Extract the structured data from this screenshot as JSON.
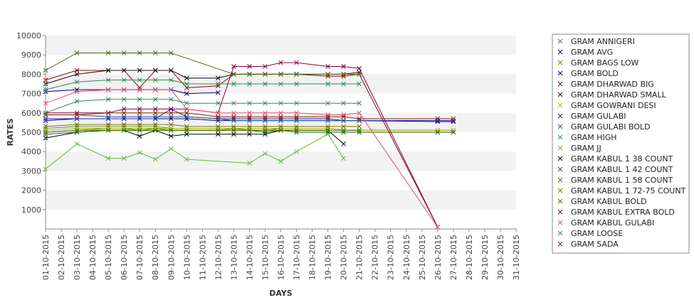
{
  "chart_data": {
    "type": "line",
    "xlabel": "DAYS",
    "ylabel": "RATES",
    "ylim": [
      0,
      10000
    ],
    "yticks": [
      1000,
      2000,
      3000,
      4000,
      5000,
      6000,
      7000,
      8000,
      9000,
      10000
    ],
    "grid": "alternating horizontal bands",
    "legend_position": "right",
    "categories": [
      "01-10-2015",
      "02-10-2015",
      "03-10-2015",
      "04-10-2015",
      "05-10-2015",
      "06-10-2015",
      "07-10-2015",
      "08-10-2015",
      "09-10-2015",
      "10-10-2015",
      "11-10-2015",
      "12-10-2015",
      "13-10-2015",
      "14-10-2015",
      "15-10-2015",
      "16-10-2015",
      "17-10-2015",
      "18-10-2015",
      "19-10-2015",
      "20-10-2015",
      "21-10-2015",
      "22-10-2015",
      "23-10-2015",
      "24-10-2015",
      "25-10-2015",
      "26-10-2015",
      "27-10-2015",
      "28-10-2015",
      "29-10-2015",
      "30-10-2015",
      "31-10-2015"
    ],
    "series": [
      {
        "name": "GRAM ANNIGERI",
        "color": "#2e8b57",
        "values": [
          5000,
          null,
          5100,
          null,
          5200,
          5200,
          5100,
          5200,
          5100,
          5100,
          null,
          5100,
          5200,
          5100,
          5100,
          5200,
          5200,
          null,
          5200,
          5100,
          null,
          null,
          null,
          null,
          null,
          null,
          null,
          null,
          null,
          null,
          null
        ]
      },
      {
        "name": "GRAM AVG",
        "color": "#000080",
        "values": [
          5600,
          null,
          5700,
          null,
          5700,
          5700,
          5700,
          5700,
          5700,
          5700,
          null,
          5600,
          5600,
          5600,
          5600,
          5600,
          5600,
          null,
          5600,
          5600,
          5600,
          null,
          null,
          null,
          null,
          5550,
          5550,
          null,
          null,
          null,
          null
        ]
      },
      {
        "name": "GRAM BAGS LOW",
        "color": "#6b8e23",
        "values": [
          5200,
          null,
          5300,
          null,
          5300,
          5300,
          5300,
          5300,
          5200,
          5200,
          null,
          5200,
          5200,
          5200,
          5200,
          5200,
          5200,
          null,
          5200,
          5100,
          5100,
          null,
          null,
          null,
          null,
          5100,
          5100,
          null,
          null,
          null,
          null
        ]
      },
      {
        "name": "GRAM BOLD",
        "color": "#00008b",
        "values": [
          7100,
          null,
          7200,
          null,
          7200,
          7200,
          7200,
          7200,
          7200,
          7000,
          null,
          7050,
          null,
          null,
          null,
          null,
          null,
          null,
          null,
          null,
          null,
          null,
          null,
          null,
          null,
          null,
          null,
          null,
          null,
          null,
          null
        ]
      },
      {
        "name": "GRAM DHARWAD BIG",
        "color": "#8b0000",
        "values": [
          7700,
          null,
          8200,
          null,
          8200,
          8200,
          7300,
          8200,
          8200,
          7300,
          null,
          7400,
          8000,
          8000,
          8000,
          8000,
          8000,
          null,
          7900,
          7900,
          8000,
          null,
          null,
          null,
          null,
          100,
          null,
          null,
          null,
          null,
          null
        ]
      },
      {
        "name": "GRAM DHARWAD SMALL",
        "color": "#111111",
        "values": [
          7500,
          null,
          8000,
          null,
          8200,
          8200,
          8200,
          8200,
          8200,
          7800,
          null,
          7800,
          8000,
          8000,
          8000,
          8000,
          8000,
          null,
          8000,
          8000,
          8100,
          null,
          null,
          null,
          null,
          null,
          null,
          null,
          null,
          null,
          null
        ]
      },
      {
        "name": "GRAM GOWRANI DESI",
        "color": "#c8b400",
        "values": [
          5100,
          null,
          5200,
          null,
          5200,
          5200,
          5200,
          5200,
          5200,
          5200,
          null,
          5200,
          5200,
          5200,
          5200,
          5200,
          5200,
          null,
          5200,
          5100,
          5100,
          null,
          null,
          null,
          null,
          5100,
          5100,
          null,
          null,
          null,
          null
        ]
      },
      {
        "name": "GRAM GULABI",
        "color": "#2020c0",
        "values": [
          5700,
          null,
          5700,
          null,
          5700,
          5700,
          5700,
          5700,
          6200,
          5800,
          null,
          5700,
          5700,
          5700,
          5700,
          5700,
          5700,
          null,
          5700,
          5600,
          5600,
          null,
          null,
          null,
          null,
          5600,
          5600,
          null,
          null,
          null,
          null
        ]
      },
      {
        "name": "GRAM GULABI BOLD",
        "color": "#1f5f8f",
        "values": [
          5900,
          null,
          5900,
          null,
          5800,
          5800,
          5800,
          5800,
          5800,
          5800,
          null,
          5700,
          5600,
          5600,
          5600,
          5600,
          5600,
          null,
          5600,
          5600,
          5600,
          null,
          null,
          null,
          null,
          null,
          null,
          null,
          null,
          null,
          null
        ]
      },
      {
        "name": "GRAM HIGH",
        "color": "#2e8b57",
        "values": [
          7200,
          null,
          7600,
          null,
          7700,
          7700,
          7700,
          7700,
          7700,
          7500,
          null,
          7500,
          7500,
          7500,
          7500,
          7500,
          7500,
          null,
          7500,
          7500,
          7500,
          null,
          null,
          null,
          null,
          null,
          null,
          null,
          null,
          null,
          null
        ]
      },
      {
        "name": "GRAM JJ",
        "color": "#66bb33",
        "values": [
          3100,
          null,
          4400,
          null,
          3650,
          3650,
          3950,
          3600,
          4150,
          3600,
          null,
          null,
          null,
          3400,
          3900,
          3500,
          4000,
          null,
          4900,
          3650,
          null,
          null,
          null,
          null,
          null,
          null,
          null,
          null,
          null,
          null,
          null
        ]
      },
      {
        "name": "GRAM KABUL 1 38 COUNT",
        "color": "#000000",
        "values": [
          4700,
          null,
          5000,
          null,
          5100,
          5100,
          4800,
          5100,
          4800,
          4900,
          null,
          4900,
          4900,
          4900,
          4900,
          5100,
          5100,
          null,
          5100,
          4400,
          null,
          null,
          null,
          null,
          null,
          null,
          null,
          null,
          null,
          null,
          null
        ]
      },
      {
        "name": "GRAM KABUL 1 42 COUNT",
        "color": "#1e5e2e",
        "values": [
          4900,
          null,
          5000,
          null,
          5100,
          5100,
          5100,
          5100,
          5100,
          5100,
          null,
          5100,
          5100,
          5100,
          5000,
          5100,
          5000,
          null,
          5000,
          5000,
          5000,
          null,
          null,
          null,
          null,
          5000,
          5000,
          null,
          null,
          null,
          null
        ]
      },
      {
        "name": "GRAM KABUL 1 58 COUNT",
        "color": "#3a7d0a",
        "values": [
          5000,
          null,
          5100,
          null,
          5100,
          5100,
          5100,
          5100,
          5100,
          5100,
          null,
          5100,
          5100,
          5100,
          5100,
          5100,
          5100,
          null,
          5100,
          5100,
          5100,
          null,
          null,
          null,
          null,
          null,
          null,
          null,
          null,
          null,
          null
        ]
      },
      {
        "name": "GRAM KABUL 1 72-75 COUNT",
        "color": "#7a7a00",
        "values": [
          5300,
          null,
          5400,
          null,
          5400,
          5400,
          5400,
          5400,
          5400,
          5300,
          null,
          5300,
          5300,
          5300,
          5300,
          5300,
          5300,
          null,
          5300,
          5300,
          5300,
          null,
          null,
          null,
          null,
          null,
          null,
          null,
          null,
          null,
          null
        ]
      },
      {
        "name": "GRAM KABUL BOLD",
        "color": "#4a6e1a",
        "values": [
          8200,
          null,
          9100,
          null,
          9100,
          9100,
          9100,
          9100,
          9100,
          null,
          null,
          null,
          8000,
          8000,
          8000,
          8000,
          8000,
          null,
          8000,
          8000,
          8000,
          null,
          null,
          null,
          null,
          null,
          null,
          null,
          null,
          null,
          null
        ]
      },
      {
        "name": "GRAM KABUL EXTRA BOLD",
        "color": "#800040",
        "values": [
          6000,
          null,
          6000,
          null,
          6000,
          6200,
          6200,
          6200,
          6200,
          6200,
          null,
          6000,
          8400,
          8400,
          8400,
          8600,
          8600,
          null,
          8400,
          8400,
          8300,
          null,
          null,
          null,
          null,
          100,
          null,
          null,
          null,
          null,
          null
        ]
      },
      {
        "name": "GRAM KABUL GULABI",
        "color": "#e05070",
        "values": [
          6500,
          null,
          7100,
          null,
          7200,
          7200,
          7200,
          7200,
          7200,
          6200,
          null,
          6000,
          6000,
          6000,
          6000,
          6000,
          6000,
          null,
          5900,
          5900,
          6000,
          null,
          null,
          null,
          null,
          100,
          null,
          null,
          null,
          null,
          null
        ]
      },
      {
        "name": "GRAM LOOSE",
        "color": "#2e8b57",
        "values": [
          6000,
          null,
          6600,
          null,
          6700,
          6700,
          6700,
          6700,
          6700,
          6500,
          null,
          6500,
          6500,
          6500,
          6500,
          6500,
          6500,
          null,
          6500,
          6500,
          6500,
          null,
          null,
          null,
          null,
          null,
          null,
          null,
          null,
          null,
          null
        ]
      },
      {
        "name": "GRAM SADA",
        "color": "#8b2500",
        "values": [
          5900,
          null,
          5900,
          null,
          6000,
          6000,
          6000,
          6000,
          6000,
          6000,
          null,
          5800,
          5800,
          5800,
          5800,
          5800,
          5800,
          null,
          5800,
          5800,
          5700,
          null,
          null,
          null,
          null,
          5700,
          5700,
          null,
          null,
          null,
          null
        ]
      }
    ]
  }
}
